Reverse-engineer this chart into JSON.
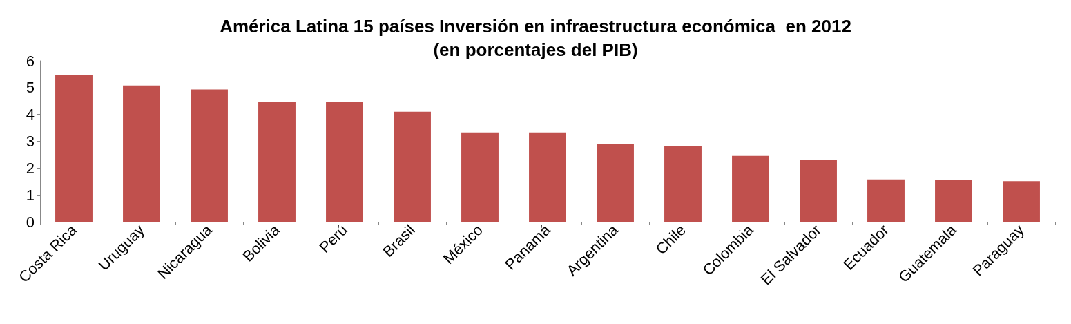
{
  "chart_data": {
    "type": "bar",
    "title": "América Latina 15 países Inversión en infraestructura económica  en 2012\n(en porcentajes del PIB)",
    "categories": [
      "Costa Rica",
      "Uruguay",
      "Nicaragua",
      "Bolivia",
      "Perú",
      "Brasil",
      "México",
      "Panamá",
      "Argentina",
      "Chile",
      "Colombia",
      "El Salvador",
      "Ecuador",
      "Guatemala",
      "Paraguay"
    ],
    "values": [
      5.47,
      5.08,
      4.93,
      4.46,
      4.46,
      4.1,
      3.33,
      3.33,
      2.9,
      2.83,
      2.45,
      2.3,
      1.58,
      1.55,
      1.51
    ],
    "color": "#c0504d",
    "ylim": [
      0,
      6
    ],
    "yticks": [
      0,
      1,
      2,
      3,
      4,
      5,
      6
    ],
    "grid": false
  }
}
